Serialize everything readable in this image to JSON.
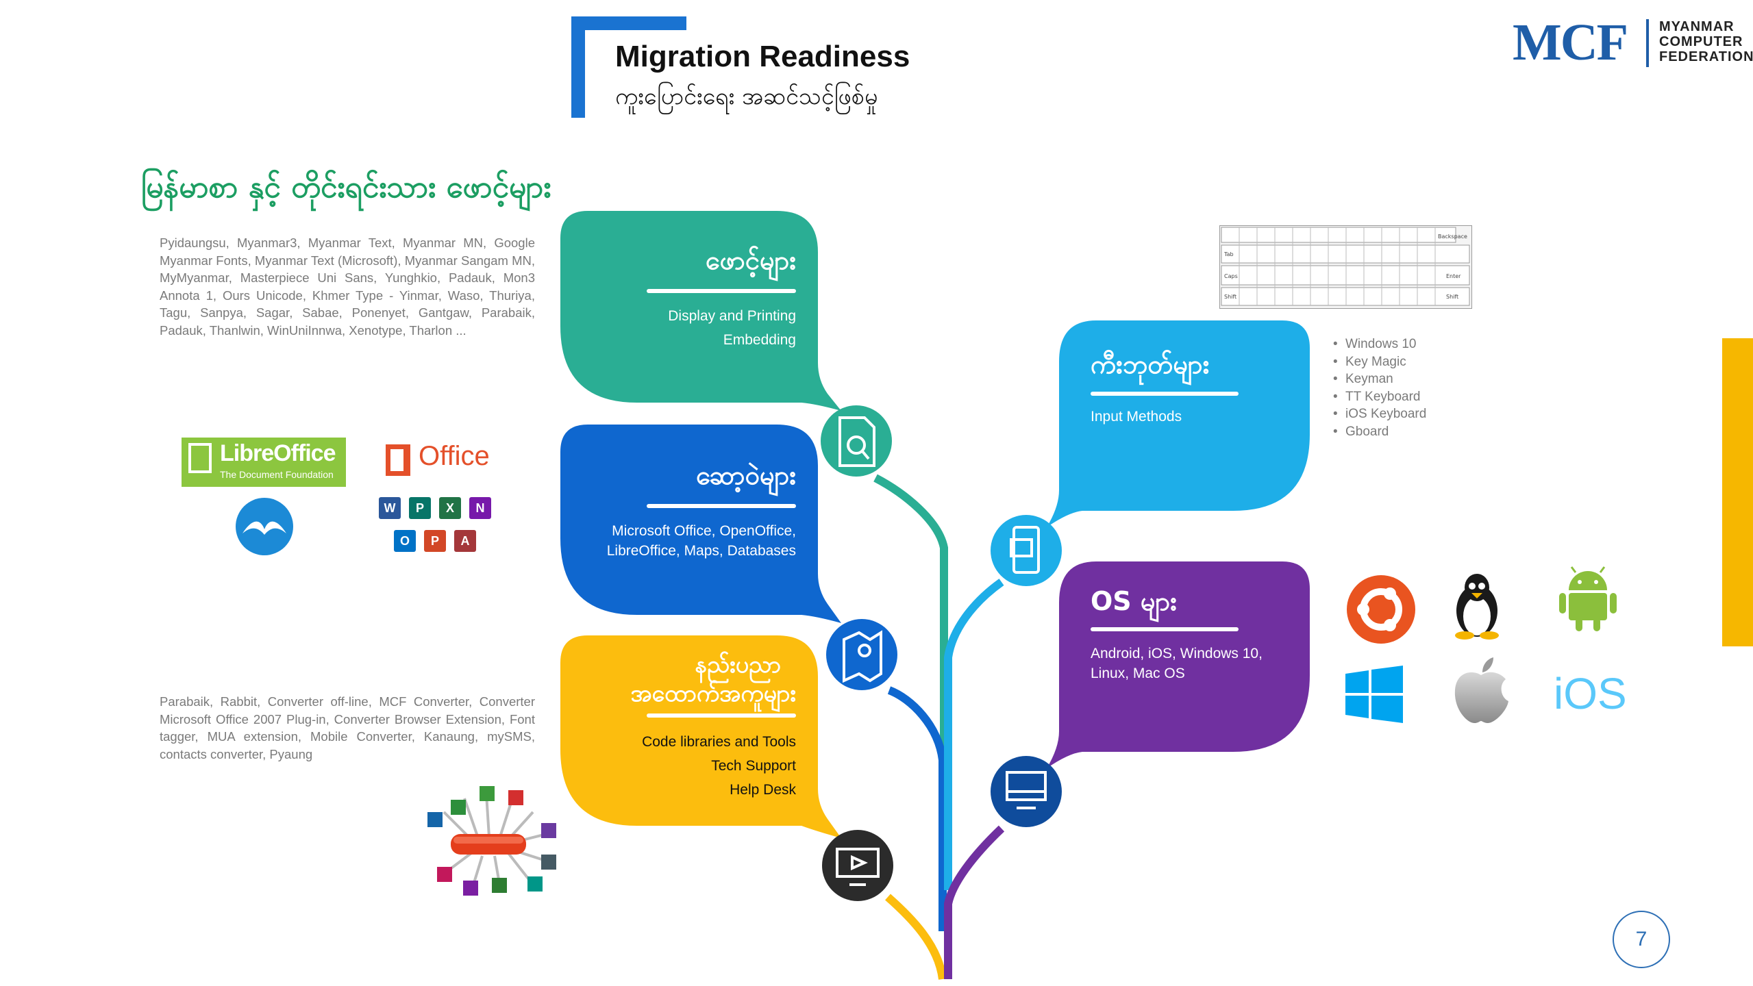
{
  "title": {
    "main": "Migration Readiness",
    "sub": "ကူးပြောင်းရေး အဆင်သင့်ဖြစ်မှု"
  },
  "logo": {
    "abbr": "MCF",
    "line1": "MYANMAR",
    "line2": "COMPUTER",
    "line3": "FEDERATION"
  },
  "page_number": "7",
  "fonts_section": {
    "heading": "မြန်မာစာ နှင့် တိုင်းရင်းသား ဖောင့်များ",
    "text": "Pyidaungsu, Myanmar3, Myanmar Text, Myanmar MN, Google Myanmar Fonts, Myanmar Text (Microsoft), Myanmar Sangam MN, MyMyanmar, Masterpiece Uni Sans, Yunghkio, Padauk, Mon3 Annota 1, Ours Unicode, Khmer Type - Yinmar, Waso, Thuriya, Tagu, Sanpya, Sagar, Sabae, Ponenyet, Gantgaw, Parabaik, Padauk, Thanlwin, WinUniInnwa, Xenotype, Tharlon ..."
  },
  "tools_section": {
    "text": "Parabaik, Rabbit, Converter off-line, MCF Converter, Converter Microsoft Office 2007 Plug-in, Converter Browser Extension, Font tagger, MUA extension, Mobile Converter, Kanaung, mySMS, contacts converter, Pyaung"
  },
  "left_logos": {
    "libreoffice_name": "LibreOffice",
    "libreoffice_sub": "The Document Foundation",
    "office_name": "Office",
    "office_apps": [
      "W",
      "P",
      "X",
      "N",
      "O",
      "P",
      "A"
    ]
  },
  "bubbles": {
    "fonts": {
      "title": "ဖောင့်များ",
      "lines": [
        "Display and Printing",
        "Embedding"
      ],
      "color": "#2aae94"
    },
    "software": {
      "title": "ဆော့ဝဲများ",
      "lines": [
        "Microsoft Office, OpenOffice,",
        "LibreOffice, Maps, Databases"
      ],
      "color": "#0f67cf"
    },
    "support": {
      "title_line1": "နည်းပညာ",
      "title_line2": "အထောက်အကူများ",
      "lines": [
        "Code libraries and Tools",
        "Tech Support",
        "Help Desk"
      ],
      "color": "#fcbd0e"
    },
    "keyboards": {
      "title": "ကီးဘုတ်များ",
      "lines": [
        "Input Methods"
      ],
      "color": "#1eaee8"
    },
    "os": {
      "title": "OS များ",
      "lines": [
        "Android, iOS, Windows 10,",
        "Linux, Mac OS"
      ],
      "color": "#7030a0"
    }
  },
  "icons": {
    "fonts_node": "font-file-icon",
    "software_node": "map-icon",
    "support_node": "video-monitor-icon",
    "keyboards_node": "mobile-image-icon",
    "os_node": "desktop-computer-icon"
  },
  "ime_list": [
    "Windows 10",
    "Key Magic",
    "Keyman",
    "TT Keyboard",
    "iOS Keyboard",
    "Gboard"
  ],
  "keyboard_image": {
    "keys": [
      "Tab",
      "Caps",
      "Shift",
      "Backspace",
      "Enter",
      "Shift"
    ]
  },
  "os_logos": {
    "ubuntu": "ubuntu-icon",
    "linux": "linux-tux-icon",
    "android": "android-icon",
    "windows": "windows-icon",
    "apple": "apple-icon",
    "ios_text": "iOS"
  },
  "colors": {
    "accent_blue": "#1a73d1",
    "heading_green": "#1c9e62",
    "side_yellow": "#f6b700",
    "gray_text": "#7a7a7a"
  }
}
